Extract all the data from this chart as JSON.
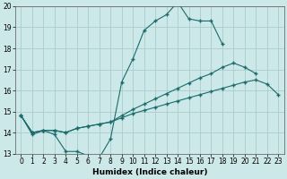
{
  "title": "",
  "xlabel": "Humidex (Indice chaleur)",
  "xlim": [
    -0.5,
    23.5
  ],
  "ylim": [
    13,
    20
  ],
  "yticks": [
    13,
    14,
    15,
    16,
    17,
    18,
    19,
    20
  ],
  "xticks": [
    0,
    1,
    2,
    3,
    4,
    5,
    6,
    7,
    8,
    9,
    10,
    11,
    12,
    13,
    14,
    15,
    16,
    17,
    18,
    19,
    20,
    21,
    22,
    23
  ],
  "bg_color": "#cde8e8",
  "grid_color": "#b0d4d4",
  "line_color": "#1a6b6b",
  "line1_y": [
    14.8,
    13.9,
    14.1,
    13.9,
    13.1,
    13.1,
    12.9,
    12.8,
    13.7,
    16.4,
    17.5,
    18.85,
    19.3,
    19.6,
    20.2,
    19.4,
    19.3,
    19.3,
    18.2,
    null,
    null,
    null,
    null,
    null
  ],
  "line2_y": [
    14.8,
    14.0,
    14.1,
    14.1,
    14.0,
    14.2,
    14.3,
    14.4,
    14.5,
    14.8,
    15.1,
    15.35,
    15.6,
    15.85,
    16.1,
    16.35,
    16.6,
    16.8,
    17.1,
    17.3,
    17.1,
    16.8,
    null,
    null
  ],
  "line3_y": [
    14.8,
    14.0,
    14.1,
    14.1,
    14.0,
    14.2,
    14.3,
    14.4,
    14.5,
    14.7,
    14.9,
    15.05,
    15.2,
    15.35,
    15.5,
    15.65,
    15.8,
    15.95,
    16.1,
    16.25,
    16.4,
    16.5,
    16.3,
    15.8
  ]
}
